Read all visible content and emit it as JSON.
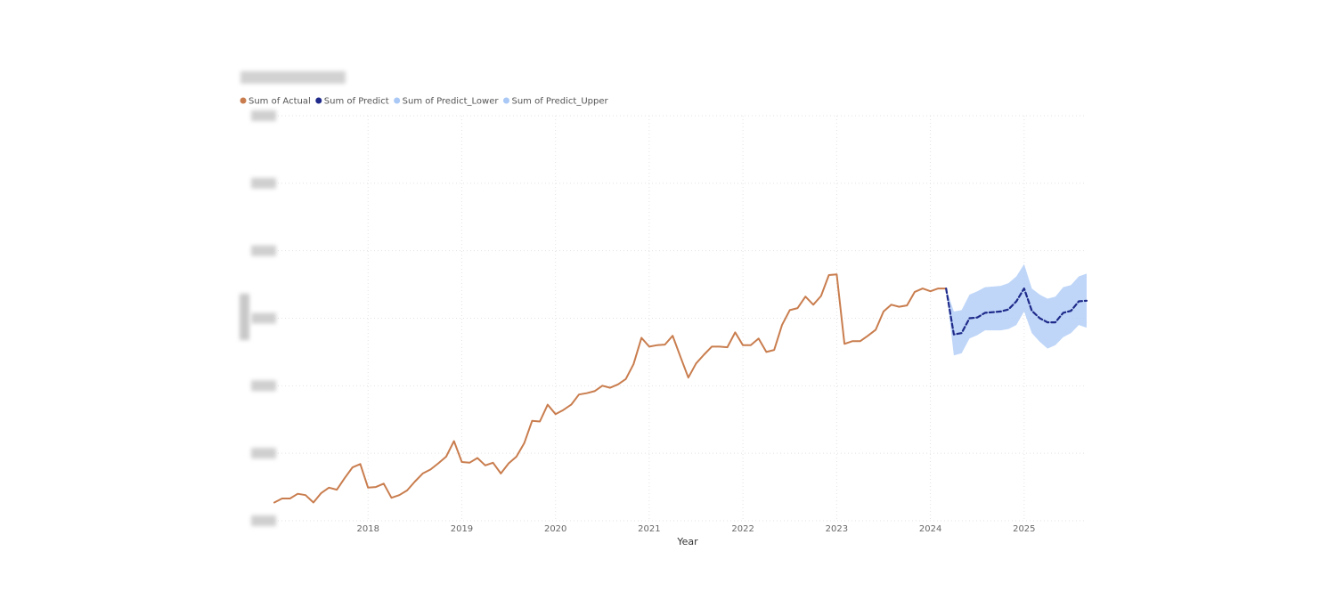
{
  "chart_data": {
    "type": "line",
    "title": "",
    "xlabel": "Year",
    "ylabel": "",
    "x_ticks": [
      "2018",
      "2019",
      "2020",
      "2021",
      "2022",
      "2023",
      "2024",
      "2025"
    ],
    "xlim": [
      2017.0,
      2025.667
    ],
    "ylim": [
      0,
      600
    ],
    "y_tick_values": [
      0,
      100,
      200,
      300,
      400,
      500,
      600
    ],
    "y_tick_labels_redacted": true,
    "grid": true,
    "legend_position": "top-left",
    "legend": [
      {
        "name": "Sum of Actual",
        "color": "#C97D4E"
      },
      {
        "name": "Sum of Predict",
        "color": "#1F2A8A"
      },
      {
        "name": "Sum of Predict_Lower",
        "color": "#A9C8F5"
      },
      {
        "name": "Sum of Predict_Upper",
        "color": "#A9C8F5"
      }
    ],
    "series": [
      {
        "name": "Sum of Actual",
        "color": "#C97D4E",
        "style": "solid",
        "x": [
          2017.0,
          2017.083,
          2017.167,
          2017.25,
          2017.333,
          2017.417,
          2017.5,
          2017.583,
          2017.667,
          2017.75,
          2017.833,
          2017.917,
          2018.0,
          2018.083,
          2018.167,
          2018.25,
          2018.333,
          2018.417,
          2018.5,
          2018.583,
          2018.667,
          2018.75,
          2018.833,
          2018.917,
          2019.0,
          2019.083,
          2019.167,
          2019.25,
          2019.333,
          2019.417,
          2019.5,
          2019.583,
          2019.667,
          2019.75,
          2019.833,
          2019.917,
          2020.0,
          2020.083,
          2020.167,
          2020.25,
          2020.333,
          2020.417,
          2020.5,
          2020.583,
          2020.667,
          2020.75,
          2020.833,
          2020.917,
          2021.0,
          2021.083,
          2021.167,
          2021.25,
          2021.333,
          2021.417,
          2021.5,
          2021.583,
          2021.667,
          2021.75,
          2021.833,
          2021.917,
          2022.0,
          2022.083,
          2022.167,
          2022.25,
          2022.333,
          2022.417,
          2022.5,
          2022.583,
          2022.667,
          2022.75,
          2022.833,
          2022.917,
          2023.0,
          2023.083,
          2023.167,
          2023.25,
          2023.333,
          2023.417,
          2023.5,
          2023.583,
          2023.667,
          2023.75,
          2023.833,
          2023.917,
          2024.0,
          2024.083,
          2024.167
        ],
        "values": [
          27,
          33,
          33,
          40,
          38,
          27,
          41,
          49,
          46,
          63,
          79,
          84,
          49,
          50,
          55,
          34,
          38,
          45,
          58,
          70,
          76,
          85,
          95,
          118,
          87,
          86,
          93,
          82,
          86,
          70,
          85,
          95,
          115,
          148,
          147,
          172,
          158,
          164,
          172,
          187,
          189,
          192,
          200,
          197,
          202,
          210,
          232,
          271,
          258,
          260,
          261,
          274,
          243,
          212,
          233,
          246,
          258,
          258,
          257,
          279,
          260,
          260,
          270,
          250,
          253,
          290,
          312,
          315,
          332,
          320,
          333,
          364,
          365,
          262,
          266,
          266,
          274,
          283,
          310,
          320,
          317,
          319,
          339,
          344,
          340,
          344,
          344
        ]
      },
      {
        "name": "Sum of Predict",
        "color": "#1F2A8A",
        "style": "dashed",
        "x": [
          2024.167,
          2024.25,
          2024.333,
          2024.417,
          2024.5,
          2024.583,
          2024.667,
          2024.75,
          2024.833,
          2024.917,
          2025.0,
          2025.083,
          2025.167,
          2025.25,
          2025.333,
          2025.417,
          2025.5,
          2025.583,
          2025.667
        ],
        "values": [
          344,
          276,
          278,
          300,
          301,
          308,
          309,
          310,
          313,
          325,
          344,
          311,
          300,
          294,
          294,
          308,
          311,
          325,
          326
        ]
      },
      {
        "name": "Sum of Predict_Lower",
        "color": "#A9C8F5",
        "style": "band-lower",
        "x": [
          2024.167,
          2024.25,
          2024.333,
          2024.417,
          2024.5,
          2024.583,
          2024.667,
          2024.75,
          2024.833,
          2024.917,
          2025.0,
          2025.083,
          2025.167,
          2025.25,
          2025.333,
          2025.417,
          2025.5,
          2025.583,
          2025.667
        ],
        "values": [
          344,
          245,
          248,
          270,
          275,
          282,
          282,
          282,
          284,
          290,
          310,
          278,
          265,
          255,
          260,
          272,
          278,
          290,
          286
        ]
      },
      {
        "name": "Sum of Predict_Upper",
        "color": "#A9C8F5",
        "style": "band-upper",
        "x": [
          2024.167,
          2024.25,
          2024.333,
          2024.417,
          2024.5,
          2024.583,
          2024.667,
          2024.75,
          2024.833,
          2024.917,
          2025.0,
          2025.083,
          2025.167,
          2025.25,
          2025.333,
          2025.417,
          2025.5,
          2025.583,
          2025.667
        ],
        "values": [
          344,
          310,
          312,
          335,
          340,
          346,
          347,
          348,
          352,
          362,
          380,
          344,
          335,
          329,
          332,
          346,
          349,
          362,
          366
        ]
      }
    ]
  }
}
